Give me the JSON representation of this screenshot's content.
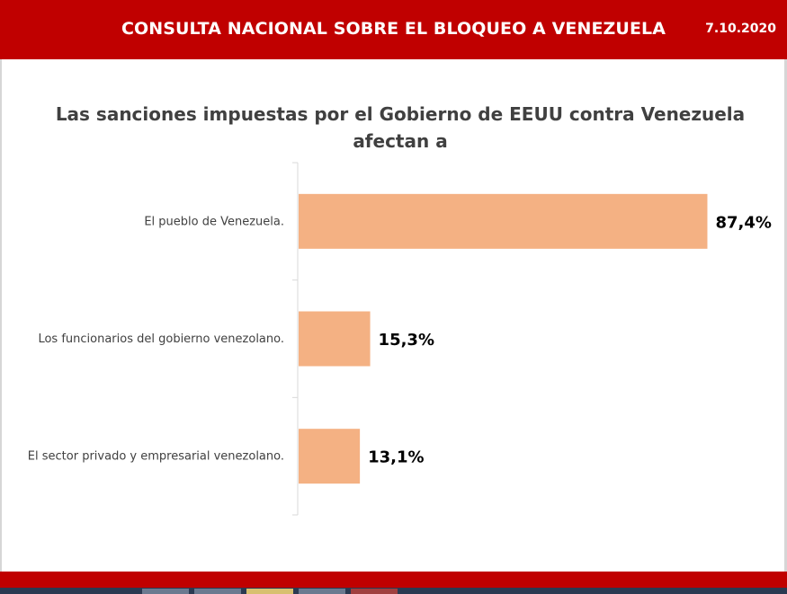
{
  "header": {
    "title": "CONSULTA NACIONAL SOBRE EL BLOQUEO A VENEZUELA",
    "date": "7.10.2020"
  },
  "colors": {
    "header": "#c00000",
    "bar": "#f4b183",
    "axis": "#d9d9d9"
  },
  "chart_data": {
    "type": "bar",
    "orientation": "horizontal",
    "title": "Las sanciones impuestas por el Gobierno de EEUU contra Venezuela afectan a",
    "title_lines": [
      "Las sanciones impuestas por el Gobierno de EEUU contra Venezuela",
      "afectan a"
    ],
    "categories": [
      "El pueblo de Venezuela.",
      "Los funcionarios del gobierno venezolano.",
      "El sector privado y empresarial venezolano."
    ],
    "values": [
      87.4,
      15.3,
      13.1
    ],
    "value_labels": [
      "87,4%",
      "15,3%",
      "13,1%"
    ],
    "xlim": [
      0,
      100
    ],
    "grid": false,
    "legend": "none"
  }
}
